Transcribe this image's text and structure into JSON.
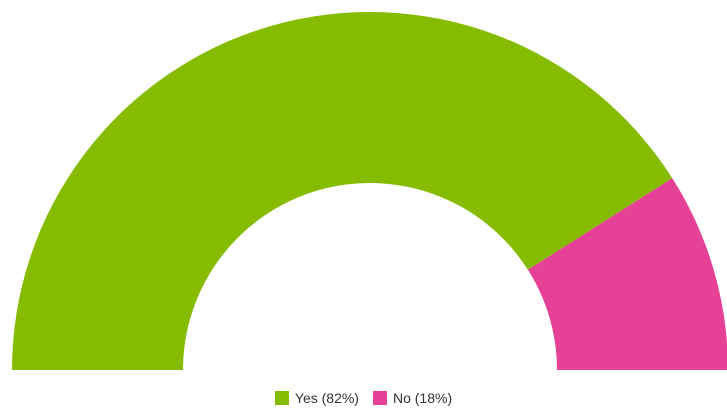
{
  "chart_data": {
    "type": "pie",
    "subtype": "semi-donut",
    "title": "",
    "categories": [
      "Yes",
      "No"
    ],
    "values": [
      82,
      18
    ],
    "colors": [
      "#86bc00",
      "#e54196"
    ],
    "legend_labels": [
      "Yes (82%)",
      "No (18%)"
    ],
    "legend_position": "bottom-center"
  }
}
